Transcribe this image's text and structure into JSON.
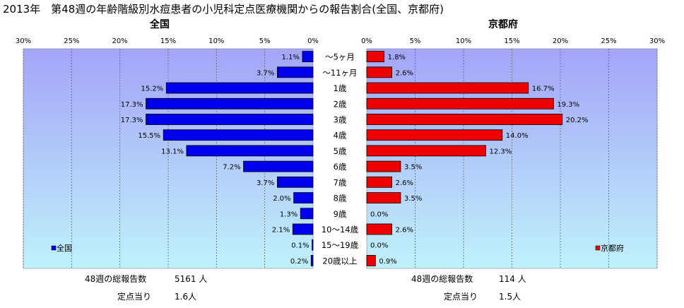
{
  "page": {
    "title": "2013年　第48週の年齢階級別水痘患者の小児科定点医療機関からの報告割合(全国、京都府)"
  },
  "chart_data": {
    "type": "bar",
    "orientation": "horizontal-butterfly",
    "categories": [
      "～5ヶ月",
      "～11ヶ月",
      "1歳",
      "2歳",
      "3歳",
      "4歳",
      "5歳",
      "6歳",
      "7歳",
      "8歳",
      "9歳",
      "10～14歳",
      "15～19歳",
      "20歳以上"
    ],
    "xlim": [
      0,
      30
    ],
    "tick_labels_left": [
      "30%",
      "25%",
      "20%",
      "15%",
      "10%",
      "5%",
      "0%"
    ],
    "tick_labels_right": [
      "0%",
      "5%",
      "10%",
      "15%",
      "20%",
      "25%",
      "30%"
    ],
    "grid": true,
    "series": [
      {
        "name": "全国",
        "panel_title": "全国",
        "side": "left",
        "color": "#0000ee",
        "values": [
          1.1,
          3.7,
          15.2,
          17.3,
          17.3,
          15.5,
          13.1,
          7.2,
          3.7,
          2.0,
          1.3,
          2.1,
          0.1,
          0.2
        ],
        "labels": [
          "1.1%",
          "3.7%",
          "15.2%",
          "17.3%",
          "17.3%",
          "15.5%",
          "13.1%",
          "7.2%",
          "3.7%",
          "2.0%",
          "1.3%",
          "2.1%",
          "0.1%",
          "0.2%"
        ],
        "legend_position": "bottom-left"
      },
      {
        "name": "京都府",
        "panel_title": "京都府",
        "side": "right",
        "color": "#ee0000",
        "values": [
          1.8,
          2.6,
          16.7,
          19.3,
          20.2,
          14.0,
          12.3,
          3.5,
          2.6,
          3.5,
          0.0,
          2.6,
          0.0,
          0.9
        ],
        "labels": [
          "1.8%",
          "2.6%",
          "16.7%",
          "19.3%",
          "20.2%",
          "14.0%",
          "12.3%",
          "3.5%",
          "2.6%",
          "3.5%",
          "0.0%",
          "2.6%",
          "0.0%",
          "0.9%"
        ],
        "legend_position": "bottom-right"
      }
    ]
  },
  "footer": {
    "left": {
      "total_label": "48週の総報告数",
      "total_value": "5161 人",
      "per_label": "定点当り",
      "per_value": "1.6人"
    },
    "right": {
      "total_label": "48週の総報告数",
      "total_value": "114 人",
      "per_label": "定点当り",
      "per_value": "1.5人"
    }
  },
  "colors": {
    "panel_top": "#a4a4f8",
    "panel_bottom": "#bff2fb",
    "grid": "#666666"
  }
}
